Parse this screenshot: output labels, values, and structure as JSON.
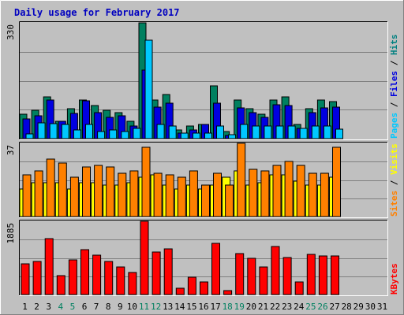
{
  "chart_data": {
    "type": "bar",
    "title": "Daily usage for February 2017",
    "x": [
      "1",
      "2",
      "3",
      "4",
      "5",
      "6",
      "7",
      "8",
      "9",
      "10",
      "11",
      "12",
      "13",
      "14",
      "15",
      "16",
      "17",
      "18",
      "19",
      "20",
      "21",
      "22",
      "23",
      "24",
      "25",
      "26",
      "27",
      "28",
      "29",
      "30",
      "31"
    ],
    "weekend_days": [
      "4",
      "5",
      "11",
      "12",
      "18",
      "19",
      "25",
      "26"
    ],
    "panels": [
      {
        "name": "hits-files-pages",
        "max_label": "330",
        "ylim": [
          0,
          330
        ],
        "legend": [
          {
            "text": "Pages",
            "color": "#00c8ff"
          },
          {
            "text": " / ",
            "color": "#000000"
          },
          {
            "text": "Files",
            "color": "#0000e0"
          },
          {
            "text": " / ",
            "color": "#000000"
          },
          {
            "text": "Hits",
            "color": "#008080"
          }
        ],
        "series": [
          {
            "name": "Hits",
            "color": "#008060",
            "values": [
              70,
              80,
              120,
              50,
              85,
              110,
              95,
              80,
              75,
              50,
              330,
              110,
              125,
              25,
              35,
              40,
              150,
              20,
              110,
              85,
              70,
              110,
              120,
              40,
              85,
              110,
              105,
              0,
              0,
              0,
              0
            ]
          },
          {
            "name": "Files",
            "color": "#0000e0",
            "values": [
              57,
              65,
              110,
              50,
              72,
              108,
              75,
              60,
              65,
              35,
              195,
              90,
              100,
              15,
              25,
              40,
              100,
              10,
              88,
              75,
              60,
              97,
              95,
              30,
              75,
              88,
              90,
              0,
              0,
              0,
              0
            ]
          },
          {
            "name": "Pages",
            "color": "#00c8ff",
            "values": [
              13,
              45,
              42,
              40,
              25,
              40,
              20,
              25,
              20,
              30,
              280,
              40,
              35,
              15,
              15,
              15,
              35,
              12,
              40,
              35,
              35,
              37,
              35,
              30,
              35,
              35,
              28,
              0,
              0,
              0,
              0
            ]
          }
        ]
      },
      {
        "name": "visits-sites",
        "max_label": "37",
        "ylim": [
          0,
          37
        ],
        "legend": [
          {
            "text": "Sites",
            "color": "#ff8000"
          },
          {
            "text": " / ",
            "color": "#000000"
          },
          {
            "text": "Visits",
            "color": "#ffff00"
          }
        ],
        "series": [
          {
            "name": "Visits",
            "color": "#ffff00",
            "values": [
              14,
              17,
              17,
              17,
              14,
              17,
              17,
              16,
              16,
              17,
              20,
              21,
              16,
              14,
              16,
              14,
              16,
              20,
              23,
              16,
              17,
              21,
              21,
              18,
              16,
              16,
              20,
              0,
              0,
              0,
              0
            ]
          },
          {
            "name": "Sites",
            "color": "#ff8000",
            "values": [
              21,
              23,
              29,
              27,
              20,
              25,
              26,
              25,
              22,
              23,
              35,
              22,
              21,
              20,
              23,
              16,
              22,
              16,
              37,
              24,
              23,
              26,
              28,
              26,
              22,
              22,
              35,
              0,
              0,
              0,
              0
            ]
          }
        ]
      },
      {
        "name": "kbytes",
        "max_label": "1885",
        "ylim": [
          0,
          1885
        ],
        "legend": [
          {
            "text": "KBytes",
            "color": "#ff0000"
          }
        ],
        "series": [
          {
            "name": "KBytes",
            "color": "#ff0000",
            "values": [
              790,
              860,
              1430,
              480,
              890,
              1160,
              1020,
              850,
              700,
              560,
              1885,
              1100,
              1180,
              160,
              450,
              320,
              1320,
              100,
              1050,
              930,
              710,
              1240,
              960,
              320,
              1030,
              1000,
              1000,
              0,
              0,
              0,
              0
            ]
          }
        ]
      }
    ]
  }
}
